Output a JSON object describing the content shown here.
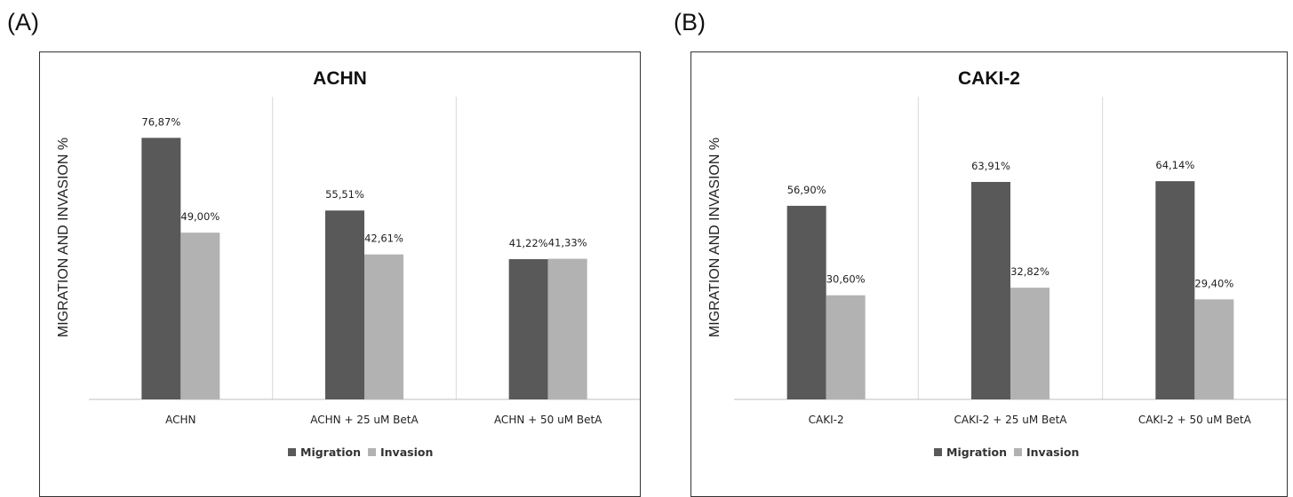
{
  "panels": [
    {
      "label": "(A)"
    },
    {
      "label": "(B)"
    }
  ],
  "colors": {
    "migration": "#595959",
    "invasion": "#b2b2b2",
    "grid": "#d9d9d9",
    "axis": "#bfbfbf"
  },
  "chart_data": [
    {
      "type": "bar",
      "title": "ACHN",
      "xlabel": "",
      "ylabel": "MIGRATION AND INVASION %",
      "ylim": [
        0,
        90
      ],
      "categories": [
        "ACHN",
        "ACHN + 25 uM BetA",
        "ACHN + 50 uM BetA"
      ],
      "series": [
        {
          "name": "Migration",
          "values": [
            76.87,
            55.51,
            41.22
          ],
          "labels": [
            "76,87%",
            "55,51%",
            "41,22%"
          ]
        },
        {
          "name": "Invasion",
          "values": [
            49.0,
            42.61,
            41.33
          ],
          "labels": [
            "49,00%",
            "42,61%",
            "41,33%"
          ]
        }
      ],
      "legend": "bottom",
      "grid": false
    },
    {
      "type": "bar",
      "title": "CAKI-2",
      "xlabel": "",
      "ylabel": "MIGRATION AND INVASION %",
      "ylim": [
        0,
        90
      ],
      "categories": [
        "CAKI-2",
        "CAKI-2 + 25 uM BetA",
        "CAKI-2 + 50 uM BetA"
      ],
      "series": [
        {
          "name": "Migration",
          "values": [
            56.9,
            63.91,
            64.14
          ],
          "labels": [
            "56,90%",
            "63,91%",
            "64,14%"
          ]
        },
        {
          "name": "Invasion",
          "values": [
            30.6,
            32.82,
            29.4
          ],
          "labels": [
            "30,60%",
            "32,82%",
            "29,40%"
          ]
        }
      ],
      "legend": "bottom",
      "grid": false
    }
  ]
}
